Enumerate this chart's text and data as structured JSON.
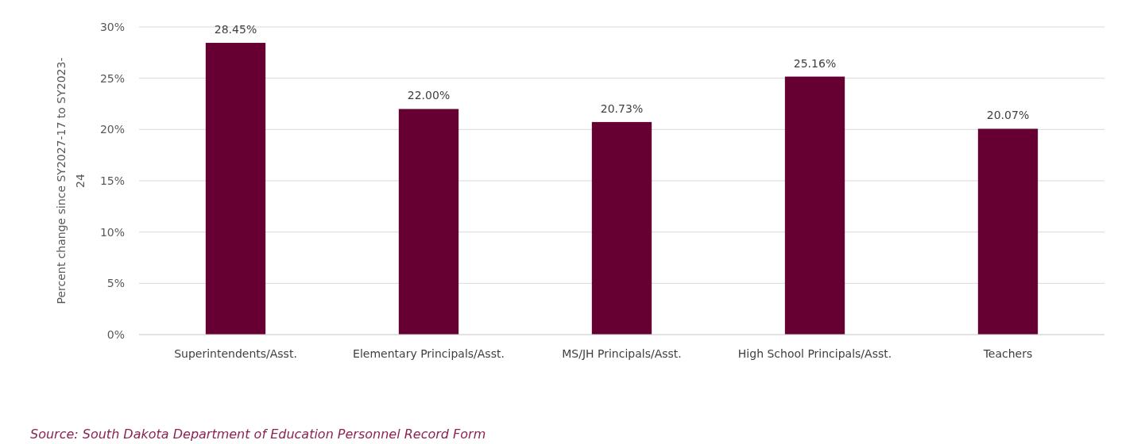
{
  "chart_data": {
    "type": "bar",
    "categories": [
      "Superintendents/Asst.",
      "Elementary Principals/Asst.",
      "MS/JH Principals/Asst.",
      "High School Principals/Asst.",
      "Teachers"
    ],
    "values": [
      28.45,
      22.0,
      20.73,
      25.16,
      20.07
    ],
    "value_labels": [
      "28.45%",
      "22.00%",
      "20.73%",
      "25.16%",
      "20.07%"
    ],
    "color": "#660033",
    "ylabel": "Percent change since SY2027-17 to SY2023-24",
    "ylim": [
      0,
      30
    ],
    "yticks": [
      {
        "value": 0,
        "label": "0%"
      },
      {
        "value": 5,
        "label": "5%"
      },
      {
        "value": 10,
        "label": "10%"
      },
      {
        "value": 15,
        "label": "15%"
      },
      {
        "value": 20,
        "label": "20%"
      },
      {
        "value": 25,
        "label": "25%"
      },
      {
        "value": 30,
        "label": "30%"
      }
    ],
    "grid": "y",
    "annotations": [
      "Source: South Dakota Department of Education Personnel Record Form"
    ]
  }
}
